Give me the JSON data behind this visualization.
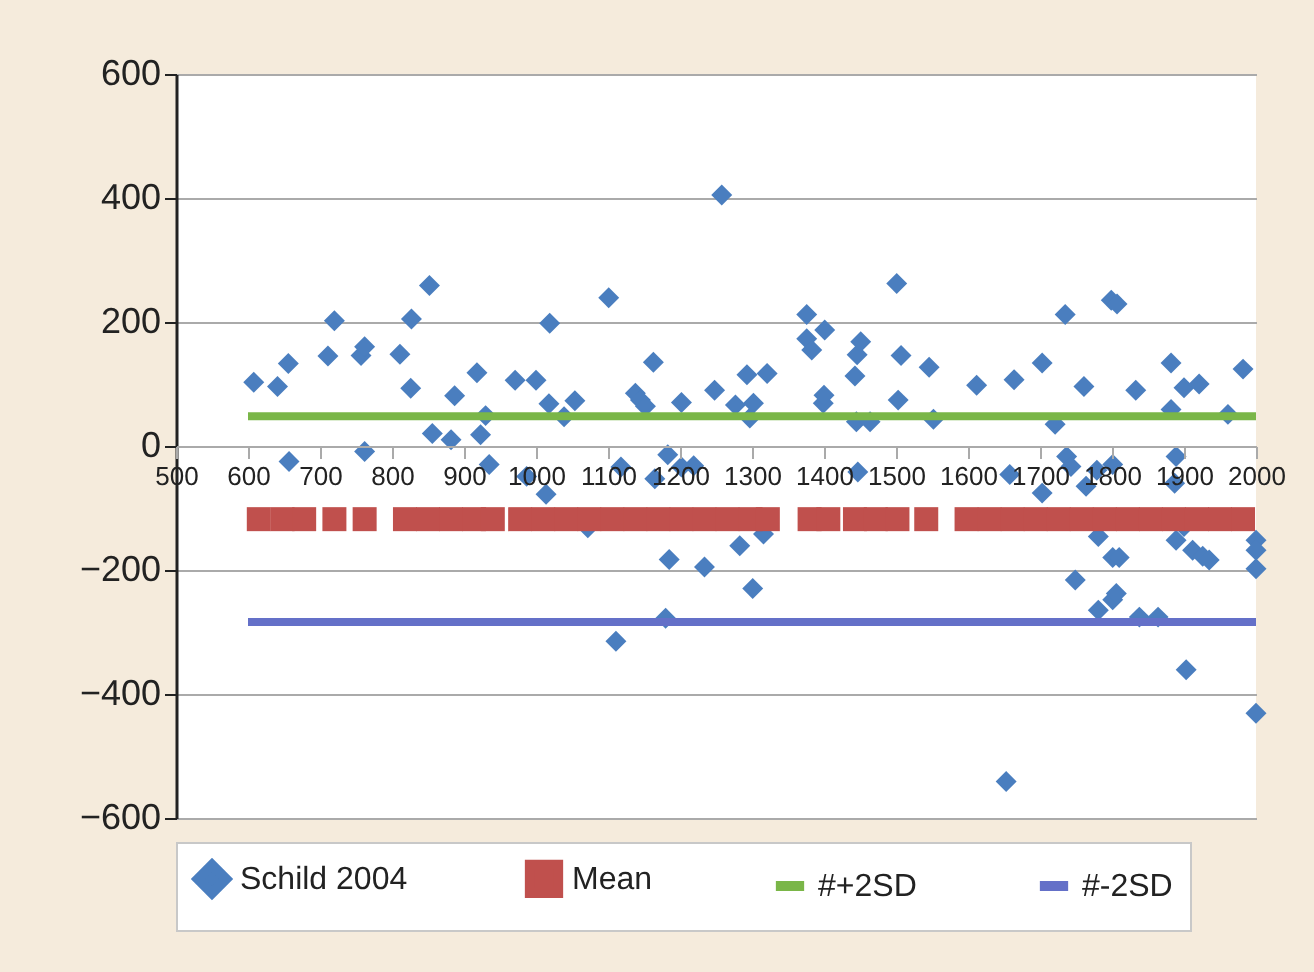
{
  "chart_data": {
    "type": "scatter",
    "xlim": [
      500,
      2000
    ],
    "xticks": [
      500,
      600,
      700,
      800,
      900,
      1000,
      1100,
      1200,
      1300,
      1400,
      1500,
      1600,
      1700,
      1800,
      1900,
      2000
    ],
    "ylim": [
      -600,
      600
    ],
    "yticks": [
      -600,
      -400,
      -200,
      0,
      200,
      400,
      600
    ],
    "grid": "y",
    "legend": "bottom",
    "series": [
      {
        "name": "Schild 2004",
        "marker": "diamond",
        "color": "#4a7ebf",
        "x": [
          608,
          641,
          656,
          657,
          711,
          720,
          757,
          762,
          762,
          811,
          827,
          826,
          852,
          856,
          882,
          887,
          918,
          923,
          930,
          935,
          971,
          987,
          1000,
          1018,
          1019,
          1014,
          1039,
          1054,
          1072,
          1101,
          1111,
          1118,
          1138,
          1145,
          1152,
          1163,
          1165,
          1180,
          1183,
          1185,
          1202,
          1202,
          1219,
          1234,
          1248,
          1258,
          1277,
          1283,
          1293,
          1297,
          1301,
          1302,
          1316,
          1321,
          1376,
          1376,
          1383,
          1399,
          1400,
          1401,
          1443,
          1445,
          1446,
          1447,
          1451,
          1464,
          1501,
          1503,
          1507,
          1546,
          1552,
          1612,
          1653,
          1658,
          1664,
          1703,
          1703,
          1721,
          1735,
          1737,
          1743,
          1749,
          1761,
          1764,
          1779,
          1781,
          1781,
          1799,
          1801,
          1801,
          1801,
          1806,
          1807,
          1810,
          1833,
          1838,
          1864,
          1882,
          1882,
          1887,
          1889,
          1889,
          1900,
          1900,
          1903,
          1912,
          1921,
          1926,
          1935,
          1961,
          1982,
          2000,
          2000,
          2000,
          2000
        ],
        "values": [
          103,
          96,
          133,
          -25,
          145,
          202,
          146,
          160,
          -9,
          148,
          205,
          93,
          259,
          20,
          10,
          81,
          118,
          18,
          49,
          -30,
          106,
          -49,
          106,
          68,
          198,
          -78,
          47,
          73,
          -132,
          239,
          -315,
          -34,
          85,
          74,
          64,
          135,
          -53,
          -278,
          -14,
          -183,
          70,
          -34,
          -32,
          -195,
          90,
          405,
          66,
          -161,
          115,
          45,
          -230,
          69,
          -142,
          117,
          212,
          173,
          155,
          69,
          82,
          187,
          113,
          39,
          147,
          -42,
          168,
          39,
          262,
          74,
          146,
          127,
          43,
          98,
          -541,
          -46,
          107,
          134,
          -76,
          35,
          212,
          -17,
          -33,
          -216,
          96,
          -65,
          -39,
          -146,
          -265,
          235,
          -30,
          -180,
          -248,
          -238,
          229,
          -180,
          90,
          -276,
          -276,
          134,
          59,
          -60,
          -17,
          -152,
          94,
          -130,
          -361,
          -168,
          100,
          -178,
          -184,
          51,
          124,
          -152,
          -168,
          -198,
          -431
        ]
      },
      {
        "name": "Mean",
        "marker": "square",
        "color": "#c0504d",
        "x": [
          615,
          648,
          678,
          720,
          762,
          818,
          850,
          882,
          914,
          940,
          978,
          1010,
          1042,
          1074,
          1106,
          1138,
          1170,
          1202,
          1234,
          1266,
          1298,
          1322,
          1380,
          1406,
          1443,
          1472,
          1502,
          1542,
          1598,
          1630,
          1662,
          1694,
          1726,
          1758,
          1790,
          1822,
          1854,
          1886,
          1918,
          1950,
          1982
        ],
        "values": [
          -118,
          -118,
          -118,
          -118,
          -118,
          -118,
          -118,
          -118,
          -118,
          -118,
          -118,
          -118,
          -118,
          -118,
          -118,
          -118,
          -118,
          -118,
          -118,
          -118,
          -118,
          -118,
          -118,
          -118,
          -118,
          -118,
          -118,
          -118,
          -118,
          -118,
          -118,
          -118,
          -118,
          -118,
          -118,
          -118,
          -118,
          -118,
          -118,
          -118,
          -118
        ]
      },
      {
        "name": "#+2SD",
        "type": "line",
        "color": "#7ab648",
        "x": [
          600,
          2000
        ],
        "values": [
          48,
          48
        ]
      },
      {
        "name": "#-2SD",
        "type": "line",
        "color": "#6470c8",
        "x": [
          600,
          2000
        ],
        "values": [
          -284,
          -284
        ]
      }
    ]
  }
}
